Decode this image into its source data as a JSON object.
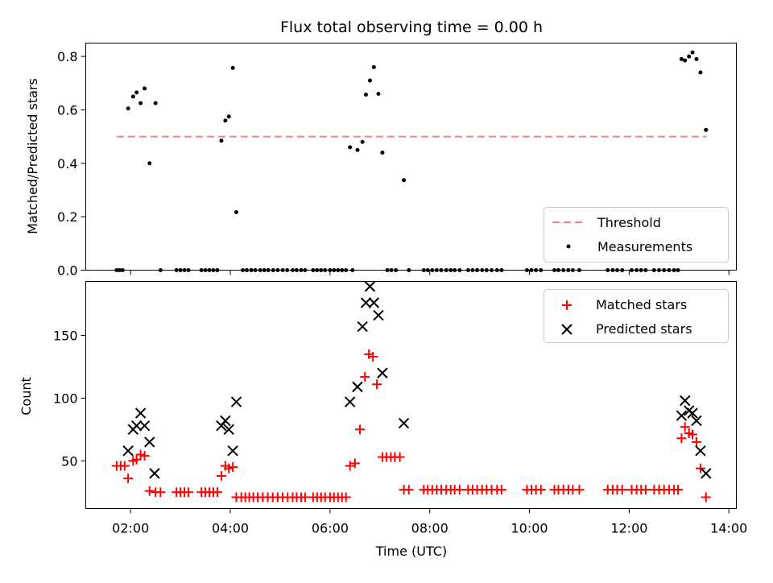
{
  "chart_data": [
    {
      "type": "scatter",
      "title": "Flux total observing time = 0.00 h",
      "xlabel": "",
      "ylabel": "Matched/Predicted stars",
      "ylim": [
        0,
        0.85
      ],
      "yticks": [
        "0.0",
        "0.2",
        "0.4",
        "0.6",
        "0.8"
      ],
      "ytick_values": [
        0,
        0.2,
        0.4,
        0.6,
        0.8
      ],
      "legend_position": "bottom-right",
      "threshold": {
        "name": "Threshold",
        "value": 0.5,
        "x_start": 1.72,
        "x_end": 13.55,
        "color": "#ff7f7f",
        "style": "dashed"
      },
      "series": [
        {
          "name": "Measurements",
          "color": "#000000",
          "marker": "dot",
          "points": [
            [
              1.72,
              0
            ],
            [
              1.78,
              0
            ],
            [
              1.84,
              0
            ],
            [
              1.95,
              0.605
            ],
            [
              2.05,
              0.65
            ],
            [
              2.12,
              0.665
            ],
            [
              2.2,
              0.625
            ],
            [
              2.28,
              0.68
            ],
            [
              2.38,
              0.4
            ],
            [
              2.5,
              0.625
            ],
            [
              2.6,
              0
            ],
            [
              2.92,
              0
            ],
            [
              3.0,
              0
            ],
            [
              3.08,
              0
            ],
            [
              3.16,
              0
            ],
            [
              3.42,
              0
            ],
            [
              3.5,
              0
            ],
            [
              3.58,
              0
            ],
            [
              3.66,
              0
            ],
            [
              3.74,
              0
            ],
            [
              3.82,
              0.485
            ],
            [
              3.9,
              0.56
            ],
            [
              3.97,
              0.575
            ],
            [
              4.05,
              0.757
            ],
            [
              4.12,
              0.217
            ],
            [
              4.25,
              0
            ],
            [
              4.33,
              0
            ],
            [
              4.42,
              0
            ],
            [
              4.5,
              0
            ],
            [
              4.6,
              0
            ],
            [
              4.68,
              0
            ],
            [
              4.76,
              0
            ],
            [
              4.86,
              0
            ],
            [
              4.95,
              0
            ],
            [
              5.05,
              0
            ],
            [
              5.14,
              0
            ],
            [
              5.25,
              0
            ],
            [
              5.33,
              0
            ],
            [
              5.42,
              0
            ],
            [
              5.5,
              0
            ],
            [
              5.66,
              0
            ],
            [
              5.74,
              0
            ],
            [
              5.82,
              0
            ],
            [
              5.9,
              0
            ],
            [
              6.0,
              0
            ],
            [
              6.08,
              0
            ],
            [
              6.16,
              0
            ],
            [
              6.24,
              0
            ],
            [
              6.32,
              0
            ],
            [
              6.45,
              0
            ],
            [
              6.4,
              0.46
            ],
            [
              6.55,
              0.45
            ],
            [
              6.65,
              0.48
            ],
            [
              6.72,
              0.657
            ],
            [
              6.8,
              0.71
            ],
            [
              6.88,
              0.76
            ],
            [
              6.97,
              0.66
            ],
            [
              7.05,
              0.44
            ],
            [
              7.15,
              0
            ],
            [
              7.23,
              0
            ],
            [
              7.32,
              0
            ],
            [
              7.48,
              0.337
            ],
            [
              7.58,
              0
            ],
            [
              7.88,
              0
            ],
            [
              7.96,
              0
            ],
            [
              8.05,
              0
            ],
            [
              8.14,
              0
            ],
            [
              8.23,
              0
            ],
            [
              8.33,
              0
            ],
            [
              8.42,
              0
            ],
            [
              8.5,
              0
            ],
            [
              8.6,
              0
            ],
            [
              8.77,
              0
            ],
            [
              8.86,
              0
            ],
            [
              8.95,
              0
            ],
            [
              9.05,
              0
            ],
            [
              9.14,
              0
            ],
            [
              9.24,
              0
            ],
            [
              9.35,
              0
            ],
            [
              9.44,
              0
            ],
            [
              9.95,
              0
            ],
            [
              10.04,
              0
            ],
            [
              10.13,
              0
            ],
            [
              10.23,
              0
            ],
            [
              10.5,
              0
            ],
            [
              10.58,
              0
            ],
            [
              10.68,
              0
            ],
            [
              10.78,
              0
            ],
            [
              10.87,
              0
            ],
            [
              11.0,
              0
            ],
            [
              11.57,
              0
            ],
            [
              11.67,
              0
            ],
            [
              11.76,
              0
            ],
            [
              11.86,
              0
            ],
            [
              12.05,
              0
            ],
            [
              12.15,
              0
            ],
            [
              12.24,
              0
            ],
            [
              12.33,
              0
            ],
            [
              12.5,
              0
            ],
            [
              12.6,
              0
            ],
            [
              12.7,
              0
            ],
            [
              12.8,
              0
            ],
            [
              12.9,
              0
            ],
            [
              12.98,
              0
            ],
            [
              13.05,
              0.79
            ],
            [
              13.12,
              0.785
            ],
            [
              13.2,
              0.8
            ],
            [
              13.27,
              0.815
            ],
            [
              13.35,
              0.79
            ],
            [
              13.43,
              0.74
            ],
            [
              13.54,
              0.525
            ]
          ]
        }
      ]
    },
    {
      "type": "scatter",
      "title": "",
      "xlabel": "Time (UTC)",
      "ylabel": "Count",
      "xlim": [
        1.1,
        14.15
      ],
      "ylim": [
        12,
        193
      ],
      "yticks": [
        "50",
        "100",
        "150"
      ],
      "ytick_values": [
        50,
        100,
        150
      ],
      "xticks": [
        "02:00",
        "04:00",
        "06:00",
        "08:00",
        "10:00",
        "12:00",
        "14:00"
      ],
      "xtick_values": [
        2,
        4,
        6,
        8,
        10,
        12,
        14
      ],
      "legend_position": "top-right",
      "series": [
        {
          "name": "Matched stars",
          "color": "#ff0000",
          "marker": "plus",
          "points": [
            [
              1.72,
              46
            ],
            [
              1.8,
              46
            ],
            [
              1.88,
              46
            ],
            [
              1.95,
              36
            ],
            [
              2.05,
              50
            ],
            [
              2.12,
              51
            ],
            [
              2.2,
              55
            ],
            [
              2.28,
              54
            ],
            [
              2.38,
              26
            ],
            [
              2.5,
              25
            ],
            [
              2.6,
              25
            ],
            [
              2.92,
              25
            ],
            [
              3.0,
              25
            ],
            [
              3.08,
              25
            ],
            [
              3.16,
              25
            ],
            [
              3.42,
              25
            ],
            [
              3.5,
              25
            ],
            [
              3.58,
              25
            ],
            [
              3.66,
              25
            ],
            [
              3.74,
              25
            ],
            [
              3.82,
              38
            ],
            [
              3.9,
              46
            ],
            [
              3.97,
              44
            ],
            [
              4.05,
              45
            ],
            [
              4.12,
              21
            ],
            [
              4.22,
              21
            ],
            [
              4.3,
              21
            ],
            [
              4.38,
              21
            ],
            [
              4.46,
              21
            ],
            [
              4.55,
              21
            ],
            [
              4.65,
              21
            ],
            [
              4.75,
              21
            ],
            [
              4.85,
              21
            ],
            [
              4.95,
              21
            ],
            [
              5.05,
              21
            ],
            [
              5.15,
              21
            ],
            [
              5.25,
              21
            ],
            [
              5.33,
              21
            ],
            [
              5.42,
              21
            ],
            [
              5.5,
              21
            ],
            [
              5.66,
              21
            ],
            [
              5.74,
              21
            ],
            [
              5.82,
              21
            ],
            [
              5.9,
              21
            ],
            [
              6.0,
              21
            ],
            [
              6.08,
              21
            ],
            [
              6.16,
              21
            ],
            [
              6.24,
              21
            ],
            [
              6.32,
              21
            ],
            [
              6.4,
              46
            ],
            [
              6.5,
              48
            ],
            [
              6.6,
              75
            ],
            [
              6.7,
              117
            ],
            [
              6.78,
              135
            ],
            [
              6.86,
              133
            ],
            [
              6.94,
              111
            ],
            [
              7.05,
              53
            ],
            [
              7.13,
              53
            ],
            [
              7.22,
              53
            ],
            [
              7.3,
              53
            ],
            [
              7.4,
              53
            ],
            [
              7.48,
              27
            ],
            [
              7.58,
              27
            ],
            [
              7.88,
              27
            ],
            [
              7.96,
              27
            ],
            [
              8.05,
              27
            ],
            [
              8.14,
              27
            ],
            [
              8.23,
              27
            ],
            [
              8.33,
              27
            ],
            [
              8.42,
              27
            ],
            [
              8.5,
              27
            ],
            [
              8.6,
              27
            ],
            [
              8.77,
              27
            ],
            [
              8.86,
              27
            ],
            [
              8.95,
              27
            ],
            [
              9.05,
              27
            ],
            [
              9.14,
              27
            ],
            [
              9.24,
              27
            ],
            [
              9.35,
              27
            ],
            [
              9.44,
              27
            ],
            [
              9.95,
              27
            ],
            [
              10.04,
              27
            ],
            [
              10.13,
              27
            ],
            [
              10.23,
              27
            ],
            [
              10.5,
              27
            ],
            [
              10.58,
              27
            ],
            [
              10.68,
              27
            ],
            [
              10.78,
              27
            ],
            [
              10.87,
              27
            ],
            [
              11.0,
              27
            ],
            [
              11.57,
              27
            ],
            [
              11.67,
              27
            ],
            [
              11.76,
              27
            ],
            [
              11.86,
              27
            ],
            [
              12.05,
              27
            ],
            [
              12.15,
              27
            ],
            [
              12.24,
              27
            ],
            [
              12.33,
              27
            ],
            [
              12.5,
              27
            ],
            [
              12.6,
              27
            ],
            [
              12.7,
              27
            ],
            [
              12.8,
              27
            ],
            [
              12.9,
              27
            ],
            [
              12.98,
              27
            ],
            [
              13.05,
              68
            ],
            [
              13.12,
              77
            ],
            [
              13.2,
              72
            ],
            [
              13.27,
              71
            ],
            [
              13.35,
              65
            ],
            [
              13.43,
              44
            ],
            [
              13.54,
              21
            ]
          ]
        },
        {
          "name": "Predicted stars",
          "color": "#000000",
          "marker": "x",
          "points": [
            [
              1.95,
              58
            ],
            [
              2.05,
              75
            ],
            [
              2.12,
              78
            ],
            [
              2.2,
              88
            ],
            [
              2.28,
              78
            ],
            [
              2.38,
              65
            ],
            [
              2.48,
              40
            ],
            [
              3.82,
              78
            ],
            [
              3.9,
              82
            ],
            [
              3.97,
              75
            ],
            [
              4.05,
              58
            ],
            [
              4.12,
              97
            ],
            [
              6.4,
              97
            ],
            [
              6.55,
              109
            ],
            [
              6.65,
              157
            ],
            [
              6.72,
              176
            ],
            [
              6.8,
              189
            ],
            [
              6.88,
              176
            ],
            [
              6.97,
              166
            ],
            [
              7.05,
              120
            ],
            [
              7.48,
              80
            ],
            [
              13.05,
              86
            ],
            [
              13.12,
              98
            ],
            [
              13.2,
              90
            ],
            [
              13.27,
              88
            ],
            [
              13.35,
              82
            ],
            [
              13.43,
              58
            ],
            [
              13.54,
              40
            ]
          ]
        }
      ]
    }
  ]
}
